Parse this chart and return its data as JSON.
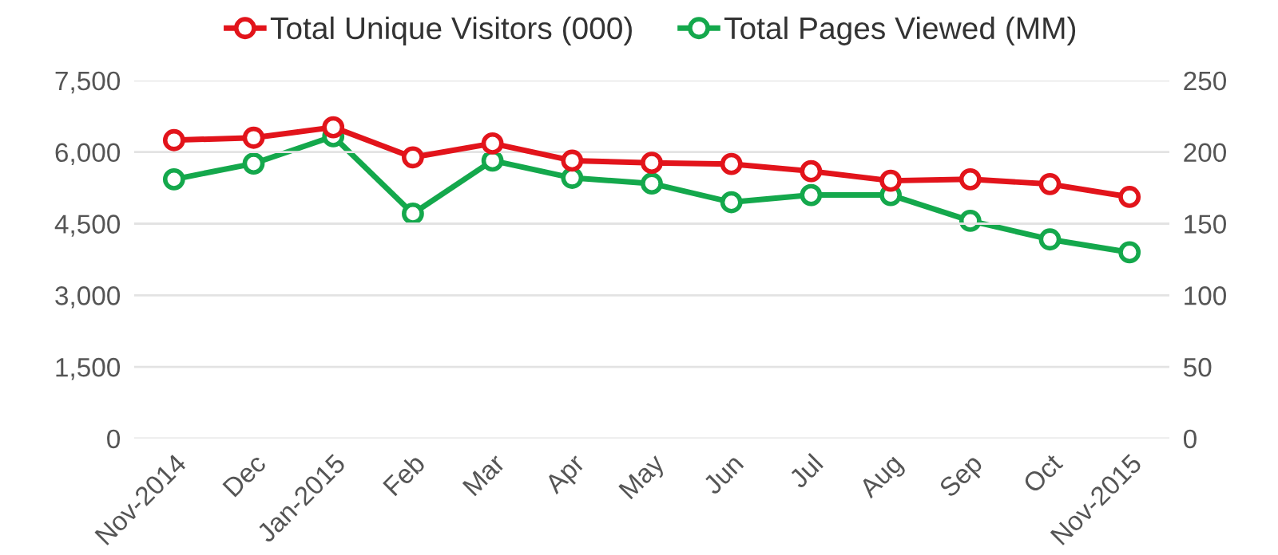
{
  "chart_data": {
    "type": "line",
    "categories": [
      "Nov-2014",
      "Dec",
      "Jan-2015",
      "Feb",
      "Mar",
      "Apr",
      "May",
      "Jun",
      "Jul",
      "Aug",
      "Sep",
      "Oct",
      "Nov-2015"
    ],
    "series": [
      {
        "name": "Total Unique Visitors (000)",
        "color": "#e2141b",
        "values": [
          6250,
          6300,
          6520,
          5890,
          6180,
          5820,
          5775,
          5750,
          5600,
          5400,
          5430,
          5330,
          5060
        ]
      },
      {
        "name": "Total Pages Viewed (MM)",
        "color": "#14a84c",
        "axis": "y2",
        "values": [
          181,
          192,
          211,
          157,
          194,
          182,
          178,
          165,
          170,
          170,
          152,
          139,
          130
        ]
      }
    ],
    "ylim": [
      0,
      7500
    ],
    "yticks": [
      {
        "value": 0,
        "label": "0"
      },
      {
        "value": 1500,
        "label": "1,500"
      },
      {
        "value": 3000,
        "label": "3,000"
      },
      {
        "value": 4500,
        "label": "4,500"
      },
      {
        "value": 6000,
        "label": "6,000"
      },
      {
        "value": 7500,
        "label": "7,500"
      }
    ],
    "y2lim": [
      0,
      250
    ],
    "y2ticks": [
      0,
      50,
      100,
      150,
      200,
      250
    ],
    "grid": "y",
    "legend": "top",
    "marker": "circle",
    "line_style": "solid"
  }
}
